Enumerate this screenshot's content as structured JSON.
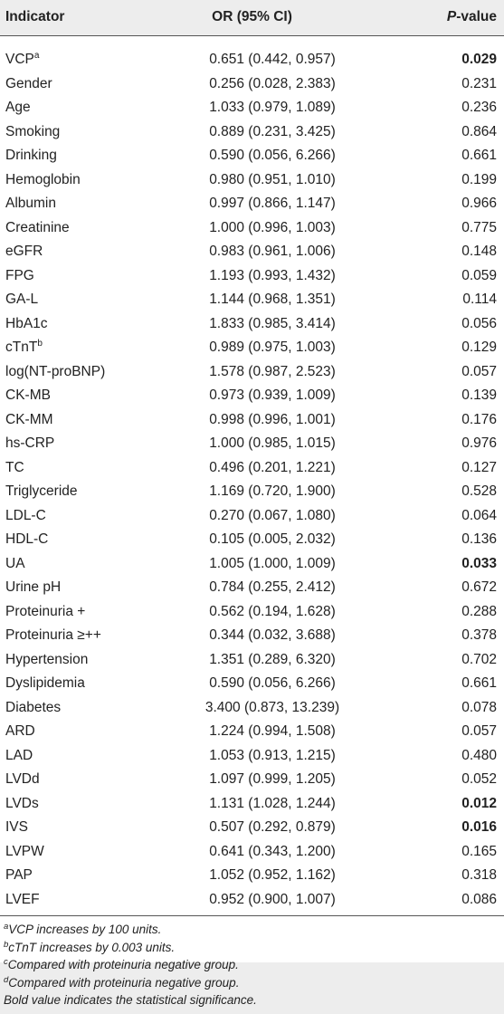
{
  "table": {
    "headers": {
      "indicator": "Indicator",
      "or_ci": "OR (95% CI)",
      "p_prefix": "P",
      "p_suffix": "-value"
    },
    "rows": [
      {
        "name": "VCP",
        "sup": "a",
        "or_ci": "0.651 (0.442, 0.957)",
        "p": "0.029",
        "bold": true
      },
      {
        "name": "Gender",
        "or_ci": "0.256 (0.028, 2.383)",
        "p": "0.231"
      },
      {
        "name": "Age",
        "or_ci": "1.033 (0.979, 1.089)",
        "p": "0.236"
      },
      {
        "name": "Smoking",
        "or_ci": "0.889 (0.231, 3.425)",
        "p": "0.864"
      },
      {
        "name": "Drinking",
        "or_ci": "0.590 (0.056, 6.266)",
        "p": "0.661"
      },
      {
        "name": "Hemoglobin",
        "or_ci": "0.980 (0.951, 1.010)",
        "p": "0.199"
      },
      {
        "name": "Albumin",
        "or_ci": "0.997 (0.866, 1.147)",
        "p": "0.966"
      },
      {
        "name": "Creatinine",
        "or_ci": "1.000 (0.996, 1.003)",
        "p": "0.775"
      },
      {
        "name": "eGFR",
        "or_ci": "0.983 (0.961, 1.006)",
        "p": "0.148"
      },
      {
        "name": "FPG",
        "or_ci": "1.193 (0.993, 1.432)",
        "p": "0.059"
      },
      {
        "name": "GA-L",
        "or_ci": "1.144 (0.968, 1.351)",
        "p": "0.114"
      },
      {
        "name": "HbA1c",
        "or_ci": "1.833 (0.985, 3.414)",
        "p": "0.056"
      },
      {
        "name": "cTnT",
        "sup": "b",
        "or_ci": "0.989 (0.975, 1.003)",
        "p": "0.129"
      },
      {
        "name": "log(NT-proBNP)",
        "or_ci": "1.578 (0.987, 2.523)",
        "p": "0.057"
      },
      {
        "name": "CK-MB",
        "or_ci": "0.973 (0.939, 1.009)",
        "p": "0.139"
      },
      {
        "name": "CK-MM",
        "or_ci": "0.998 (0.996, 1.001)",
        "p": "0.176"
      },
      {
        "name": "hs-CRP",
        "or_ci": "1.000 (0.985, 1.015)",
        "p": "0.976"
      },
      {
        "name": "TC",
        "or_ci": "0.496 (0.201, 1.221)",
        "p": "0.127"
      },
      {
        "name": "Triglyceride",
        "or_ci": "1.169 (0.720, 1.900)",
        "p": "0.528"
      },
      {
        "name": "LDL-C",
        "or_ci": "0.270 (0.067, 1.080)",
        "p": "0.064"
      },
      {
        "name": "HDL-C",
        "or_ci": "0.105 (0.005, 2.032)",
        "p": "0.136"
      },
      {
        "name": "UA",
        "or_ci": "1.005 (1.000, 1.009)",
        "p": "0.033",
        "bold": true
      },
      {
        "name": "Urine pH",
        "or_ci": "0.784 (0.255, 2.412)",
        "p": "0.672"
      },
      {
        "name": "Proteinuria +",
        "or_ci": "0.562 (0.194, 1.628)",
        "p": "0.288"
      },
      {
        "name": "Proteinuria ≥++",
        "or_ci": "0.344 (0.032, 3.688)",
        "p": "0.378"
      },
      {
        "name": "Hypertension",
        "or_ci": "1.351 (0.289, 6.320)",
        "p": "0.702"
      },
      {
        "name": "Dyslipidemia",
        "or_ci": "0.590 (0.056, 6.266)",
        "p": "0.661"
      },
      {
        "name": "Diabetes",
        "or_ci": "3.400 (0.873, 13.239)",
        "p": "0.078"
      },
      {
        "name": "ARD",
        "or_ci": "1.224 (0.994, 1.508)",
        "p": "0.057"
      },
      {
        "name": "LAD",
        "or_ci": "1.053 (0.913, 1.215)",
        "p": "0.480"
      },
      {
        "name": "LVDd",
        "or_ci": "1.097 (0.999, 1.205)",
        "p": "0.052"
      },
      {
        "name": "LVDs",
        "or_ci": "1.131 (1.028, 1.244)",
        "p": "0.012",
        "bold": true
      },
      {
        "name": "IVS",
        "or_ci": "0.507 (0.292, 0.879)",
        "p": "0.016",
        "bold": true
      },
      {
        "name": "LVPW",
        "or_ci": "0.641 (0.343, 1.200)",
        "p": "0.165"
      },
      {
        "name": "PAP",
        "or_ci": "1.052 (0.952, 1.162)",
        "p": "0.318"
      },
      {
        "name": "LVEF",
        "or_ci": "0.952 (0.900, 1.007)",
        "p": "0.086"
      }
    ]
  },
  "footnotes": [
    {
      "sup": "a",
      "text": "VCP increases by 100 units."
    },
    {
      "sup": "b",
      "text": "cTnT increases by 0.003 units."
    },
    {
      "sup": "c",
      "text": "Compared with proteinuria negative group."
    },
    {
      "sup": "d",
      "text": "Compared with proteinuria negative group."
    },
    {
      "sup": "",
      "text": "Bold value indicates the statistical significance."
    }
  ],
  "colors": {
    "band": "#ededed",
    "text": "#222222",
    "rule": "#555555"
  }
}
